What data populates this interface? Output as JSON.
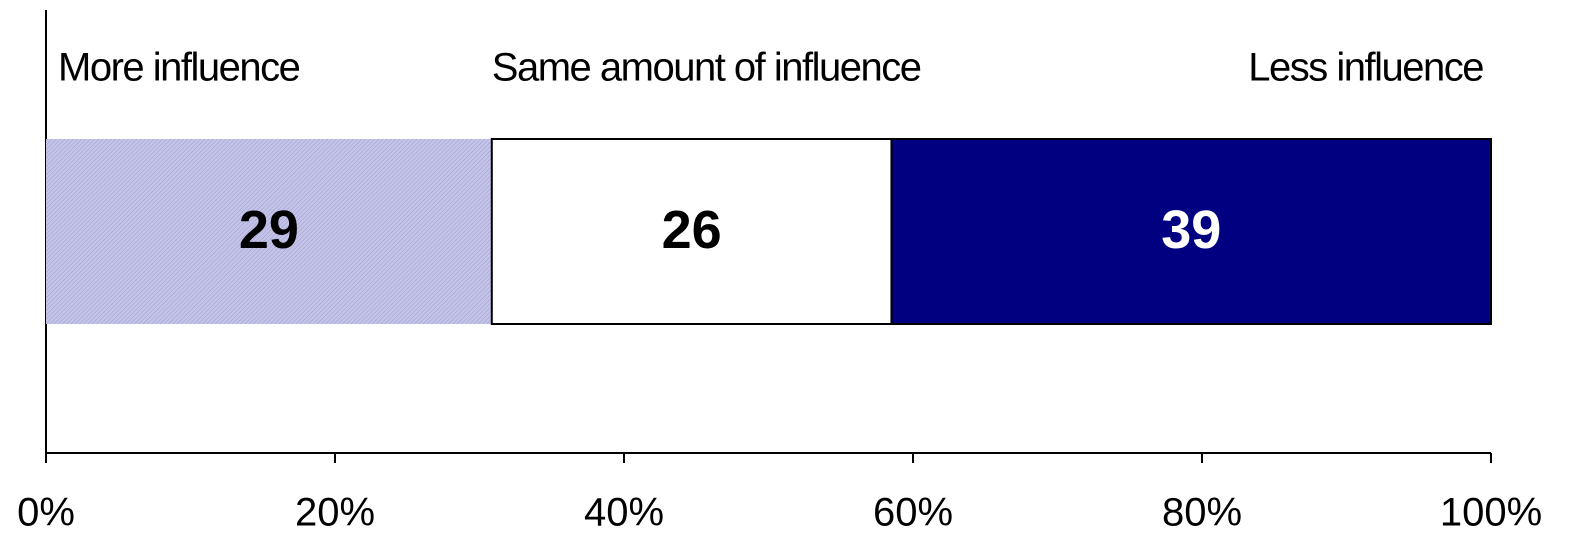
{
  "chart_data": {
    "type": "bar",
    "orientation": "horizontal",
    "stacking": "percent",
    "categories": [
      null
    ],
    "series": [
      {
        "name": "More influence",
        "color": "#b9b9e3",
        "label_color": "#000000",
        "values": [
          29
        ]
      },
      {
        "name": "Same amount of influence",
        "color": "#ffffff",
        "label_color": "#000000",
        "values": [
          26
        ]
      },
      {
        "name": "Less influence",
        "color": "#000080",
        "label_color": "#ffffff",
        "values": [
          39
        ]
      }
    ],
    "xlim": [
      0,
      100
    ],
    "xticks": [
      {
        "value": 0,
        "label": "0%"
      },
      {
        "value": 20,
        "label": "20%"
      },
      {
        "value": 40,
        "label": "40%"
      },
      {
        "value": 60,
        "label": "60%"
      },
      {
        "value": 80,
        "label": "80%"
      },
      {
        "value": 100,
        "label": "100%"
      }
    ],
    "grid": false
  }
}
